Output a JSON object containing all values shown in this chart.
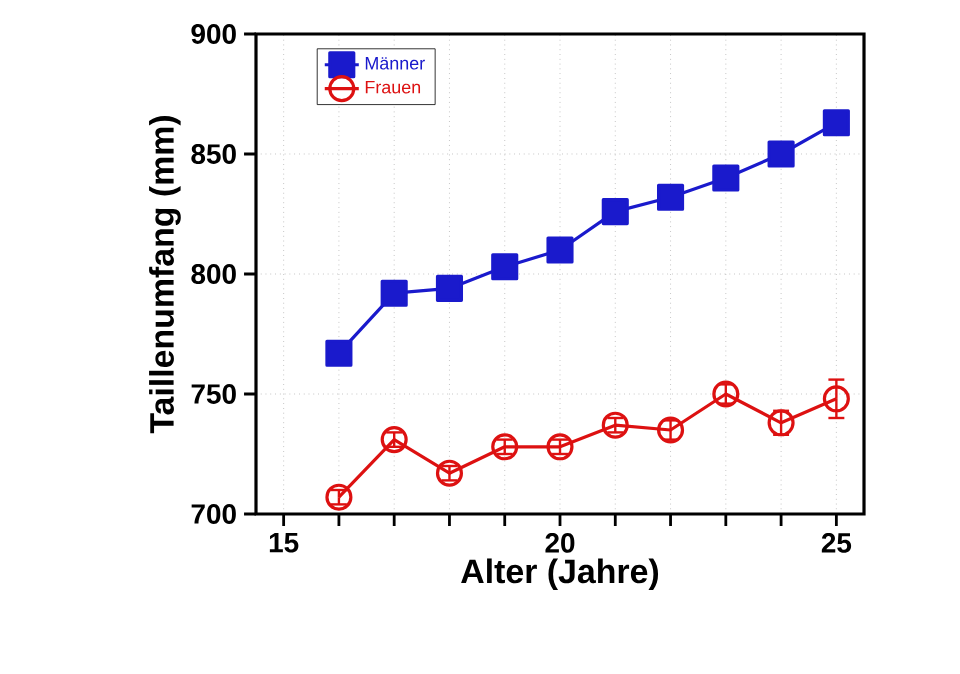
{
  "chart_data": {
    "type": "line",
    "xlabel": "Alter (Jahre)",
    "ylabel": "Taillenumfang (mm)",
    "x": [
      16,
      17,
      18,
      19,
      20,
      21,
      22,
      23,
      24,
      25
    ],
    "series": [
      {
        "name": "Männer",
        "color": "#1a1acc",
        "marker": "square",
        "values": [
          767,
          792,
          794,
          803,
          810,
          826,
          832,
          840,
          850,
          863
        ],
        "errors": [
          2,
          2,
          2,
          2,
          2,
          2,
          2,
          2,
          2,
          2
        ]
      },
      {
        "name": "Frauen",
        "color": "#dd1111",
        "marker": "circle",
        "values": [
          707,
          731,
          717,
          728,
          728,
          737,
          735,
          750,
          738,
          748
        ],
        "errors": [
          3,
          3,
          3,
          3,
          3,
          3,
          4,
          4,
          5,
          8
        ]
      }
    ],
    "xlim": [
      14.5,
      25.5
    ],
    "ylim": [
      700,
      900
    ],
    "xticks": [
      15,
      {
        "value": 16,
        "label": null
      },
      {
        "value": 17,
        "label": null
      },
      {
        "value": 18,
        "label": null
      },
      {
        "value": 19,
        "label": null
      },
      20,
      {
        "value": 21,
        "label": null
      },
      {
        "value": 22,
        "label": null
      },
      {
        "value": 23,
        "label": null
      },
      {
        "value": 24,
        "label": null
      },
      25
    ],
    "yticks": [
      700,
      750,
      800,
      850,
      900
    ],
    "grid": true,
    "legend": "top left",
    "line_style": "solid"
  }
}
